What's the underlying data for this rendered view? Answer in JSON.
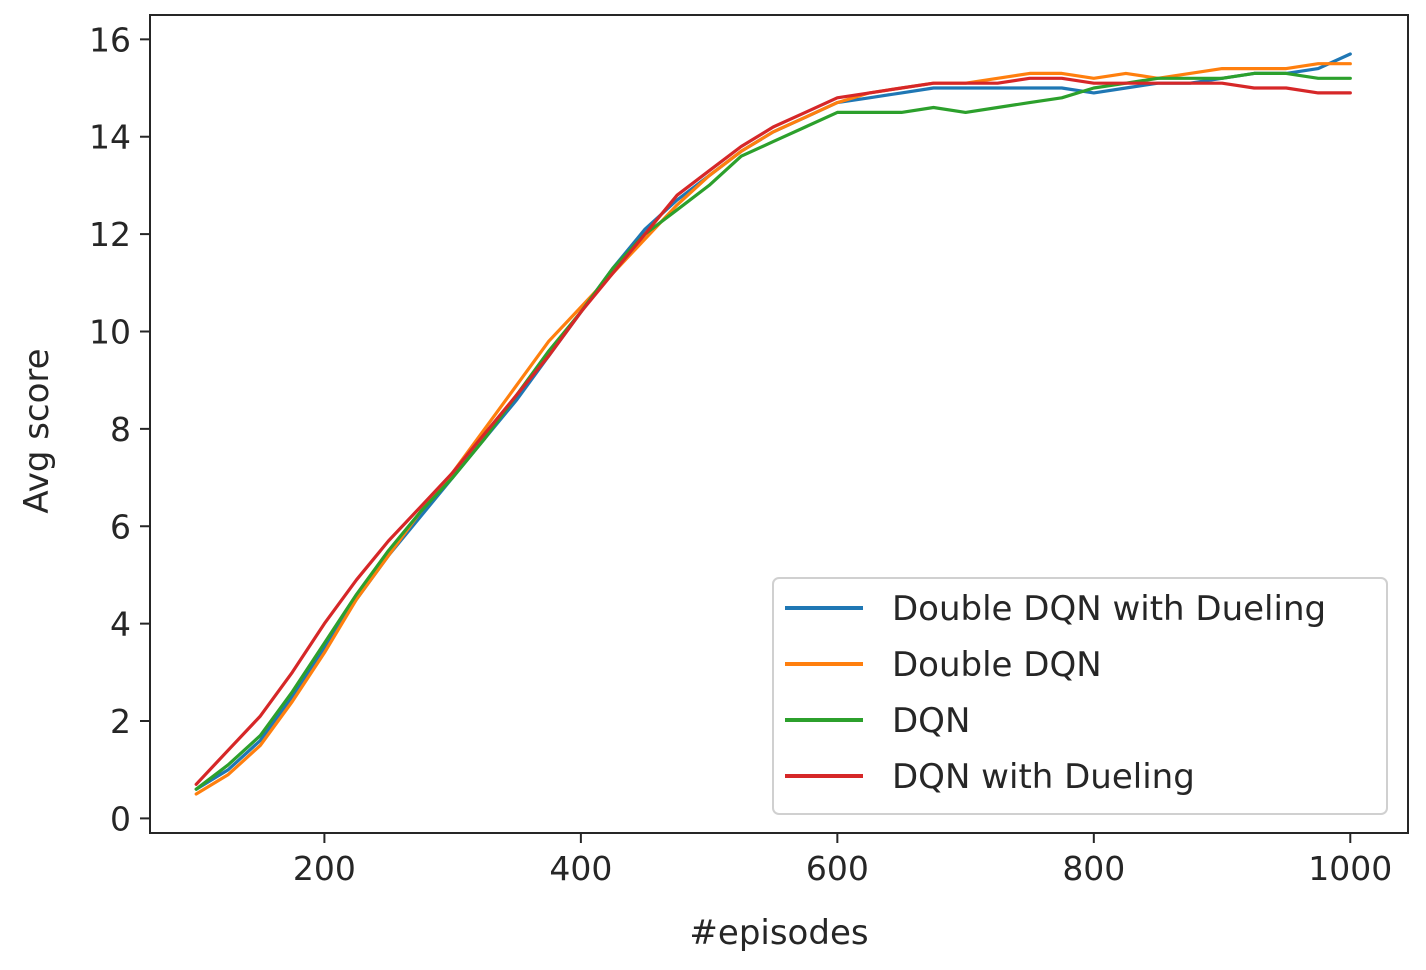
{
  "chart_data": {
    "type": "line",
    "title": "",
    "xlabel": "#episodes",
    "ylabel": "Avg score",
    "xlim": [
      64,
      1045
    ],
    "ylim": [
      -0.3,
      16.5
    ],
    "xticks": [
      200,
      400,
      600,
      800,
      1000
    ],
    "yticks": [
      0,
      2,
      4,
      6,
      8,
      10,
      12,
      14,
      16
    ],
    "grid": false,
    "legend_position": "lower-right",
    "series": [
      {
        "name": "Double DQN with Dueling",
        "color": "#1f77b4",
        "x": [
          100,
          125,
          150,
          175,
          200,
          225,
          250,
          275,
          300,
          325,
          350,
          375,
          400,
          425,
          450,
          475,
          500,
          525,
          550,
          575,
          600,
          625,
          650,
          675,
          700,
          725,
          750,
          775,
          800,
          825,
          850,
          875,
          900,
          925,
          950,
          975,
          1000
        ],
        "y": [
          0.6,
          1.0,
          1.6,
          2.5,
          3.5,
          4.5,
          5.4,
          6.2,
          7.0,
          7.8,
          8.6,
          9.5,
          10.4,
          11.3,
          12.1,
          12.7,
          13.2,
          13.7,
          14.1,
          14.4,
          14.7,
          14.8,
          14.9,
          15.0,
          15.0,
          15.0,
          15.0,
          15.0,
          14.9,
          15.0,
          15.1,
          15.1,
          15.2,
          15.3,
          15.3,
          15.4,
          15.7
        ]
      },
      {
        "name": "Double DQN",
        "color": "#ff7f0e",
        "x": [
          100,
          125,
          150,
          175,
          200,
          225,
          250,
          275,
          300,
          325,
          350,
          375,
          400,
          425,
          450,
          475,
          500,
          525,
          550,
          575,
          600,
          625,
          650,
          675,
          700,
          725,
          750,
          775,
          800,
          825,
          850,
          875,
          900,
          925,
          950,
          975,
          1000
        ],
        "y": [
          0.5,
          0.9,
          1.5,
          2.4,
          3.4,
          4.5,
          5.4,
          6.3,
          7.1,
          8.0,
          8.9,
          9.8,
          10.5,
          11.2,
          11.9,
          12.6,
          13.2,
          13.7,
          14.1,
          14.4,
          14.7,
          14.9,
          15.0,
          15.1,
          15.1,
          15.2,
          15.3,
          15.3,
          15.2,
          15.3,
          15.2,
          15.3,
          15.4,
          15.4,
          15.4,
          15.5,
          15.5
        ]
      },
      {
        "name": "DQN",
        "color": "#2ca02c",
        "x": [
          100,
          125,
          150,
          175,
          200,
          225,
          250,
          275,
          300,
          325,
          350,
          375,
          400,
          425,
          450,
          475,
          500,
          525,
          550,
          575,
          600,
          625,
          650,
          675,
          700,
          725,
          750,
          775,
          800,
          825,
          850,
          875,
          900,
          925,
          950,
          975,
          1000
        ],
        "y": [
          0.6,
          1.1,
          1.7,
          2.6,
          3.6,
          4.6,
          5.5,
          6.3,
          7.0,
          7.8,
          8.7,
          9.6,
          10.4,
          11.3,
          12.0,
          12.5,
          13.0,
          13.6,
          13.9,
          14.2,
          14.5,
          14.5,
          14.5,
          14.6,
          14.5,
          14.6,
          14.7,
          14.8,
          15.0,
          15.1,
          15.2,
          15.2,
          15.2,
          15.3,
          15.3,
          15.2,
          15.2
        ]
      },
      {
        "name": "DQN with Dueling",
        "color": "#d62728",
        "x": [
          100,
          125,
          150,
          175,
          200,
          225,
          250,
          275,
          300,
          325,
          350,
          375,
          400,
          425,
          450,
          475,
          500,
          525,
          550,
          575,
          600,
          625,
          650,
          675,
          700,
          725,
          750,
          775,
          800,
          825,
          850,
          875,
          900,
          925,
          950,
          975,
          1000
        ],
        "y": [
          0.7,
          1.4,
          2.1,
          3.0,
          4.0,
          4.9,
          5.7,
          6.4,
          7.1,
          7.9,
          8.7,
          9.5,
          10.4,
          11.2,
          12.0,
          12.8,
          13.3,
          13.8,
          14.2,
          14.5,
          14.8,
          14.9,
          15.0,
          15.1,
          15.1,
          15.1,
          15.2,
          15.2,
          15.1,
          15.1,
          15.1,
          15.1,
          15.1,
          15.0,
          15.0,
          14.9,
          14.9
        ]
      }
    ]
  }
}
